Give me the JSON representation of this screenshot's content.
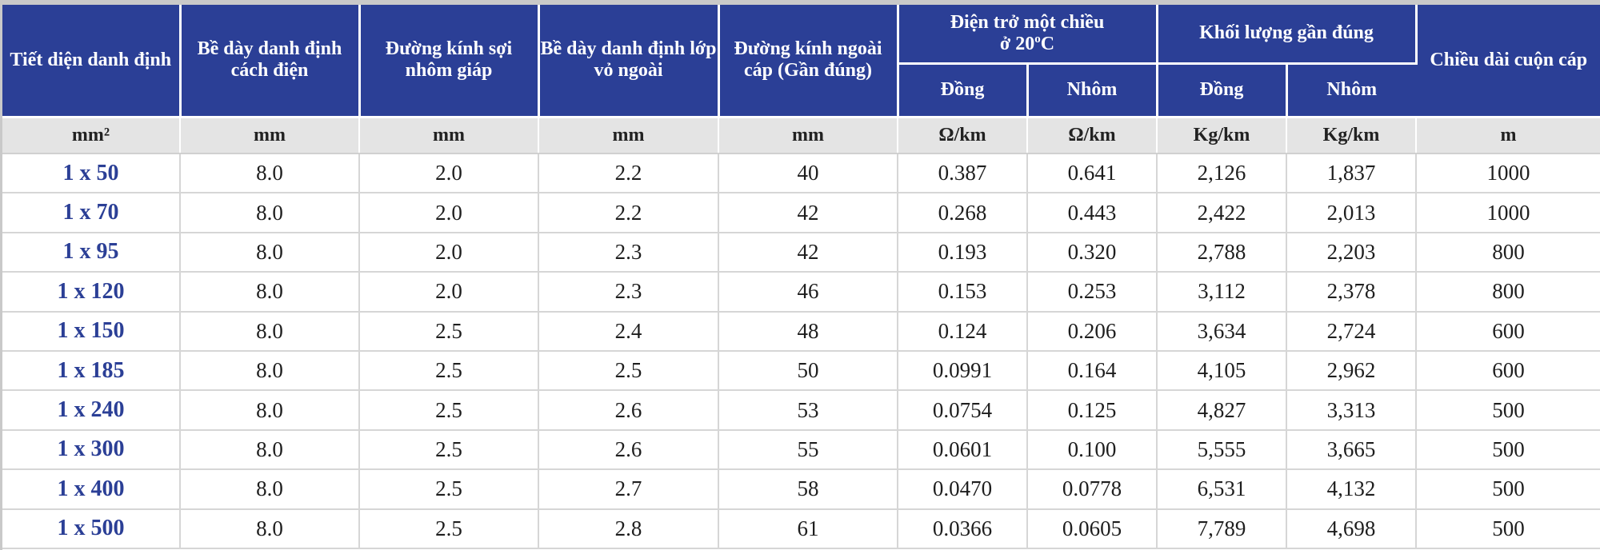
{
  "colors": {
    "header_bg": "#2b3f96",
    "header_text": "#ffffff",
    "units_bg": "#e4e4e4",
    "first_col_text": "#2b3f96"
  },
  "headers": {
    "cross_section": "Tiết diện danh định",
    "insulation_thickness": "Bề dày danh định cách điện",
    "armour_wire_diameter": "Đường kính sợi nhôm giáp",
    "sheath_thickness": "Bề dày danh định lớp vỏ ngoài",
    "outer_diameter": "Đường kính ngoài cáp (Gần đúng)",
    "dc_resistance": "Điện trở một chiều",
    "dc_resistance_line2": "ở 20",
    "dc_resistance_deg": "o",
    "dc_resistance_unit": "C",
    "approx_weight": "Khối lượng gần đúng",
    "copper": "Đồng",
    "aluminium": "Nhôm",
    "drum_length": "Chiều dài cuộn cáp"
  },
  "units": [
    "mm²",
    "mm",
    "mm",
    "mm",
    "mm",
    "Ω/km",
    "Ω/km",
    "Kg/km",
    "Kg/km",
    "m"
  ],
  "rows": [
    [
      "1 x 50",
      "8.0",
      "2.0",
      "2.2",
      "40",
      "0.387",
      "0.641",
      "2,126",
      "1,837",
      "1000"
    ],
    [
      "1 x 70",
      "8.0",
      "2.0",
      "2.2",
      "42",
      "0.268",
      "0.443",
      "2,422",
      "2,013",
      "1000"
    ],
    [
      "1 x 95",
      "8.0",
      "2.0",
      "2.3",
      "42",
      "0.193",
      "0.320",
      "2,788",
      "2,203",
      "800"
    ],
    [
      "1 x 120",
      "8.0",
      "2.0",
      "2.3",
      "46",
      "0.153",
      "0.253",
      "3,112",
      "2,378",
      "800"
    ],
    [
      "1 x 150",
      "8.0",
      "2.5",
      "2.4",
      "48",
      "0.124",
      "0.206",
      "3,634",
      "2,724",
      "600"
    ],
    [
      "1 x 185",
      "8.0",
      "2.5",
      "2.5",
      "50",
      "0.0991",
      "0.164",
      "4,105",
      "2,962",
      "600"
    ],
    [
      "1 x 240",
      "8.0",
      "2.5",
      "2.6",
      "53",
      "0.0754",
      "0.125",
      "4,827",
      "3,313",
      "500"
    ],
    [
      "1 x 300",
      "8.0",
      "2.5",
      "2.6",
      "55",
      "0.0601",
      "0.100",
      "5,555",
      "3,665",
      "500"
    ],
    [
      "1 x 400",
      "8.0",
      "2.5",
      "2.7",
      "58",
      "0.0470",
      "0.0778",
      "6,531",
      "4,132",
      "500"
    ],
    [
      "1 x 500",
      "8.0",
      "2.5",
      "2.8",
      "61",
      "0.0366",
      "0.0605",
      "7,789",
      "4,698",
      "500"
    ]
  ]
}
